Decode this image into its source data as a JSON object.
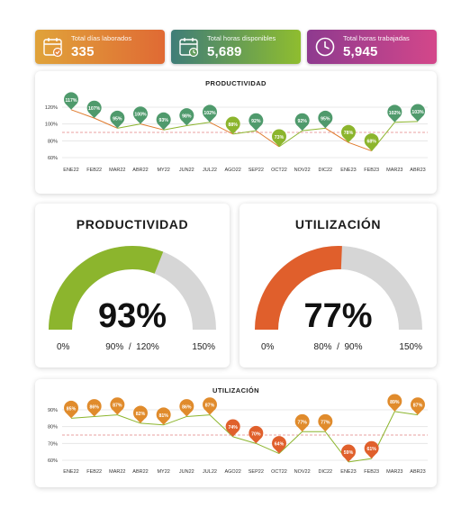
{
  "kpis": [
    {
      "label": "Total días laborados",
      "value": "335",
      "icon": "calendar-check-icon"
    },
    {
      "label": "Total horas disponibles",
      "value": "5,689",
      "icon": "calendar-clock-icon"
    },
    {
      "label": "Total horas trabajadas",
      "value": "5,945",
      "icon": "clock-icon"
    }
  ],
  "gauges": {
    "productividad": {
      "title": "PRODUCTIVIDAD",
      "value_label": "93%",
      "value": 93,
      "min_label": "0%",
      "target_label": "90%",
      "sep": "/",
      "max_mid_label": "120%",
      "max_label": "150%",
      "max": 150,
      "color": "#8cb52d"
    },
    "utilizacion": {
      "title": "UTILIZACIÓN",
      "value_label": "77%",
      "value": 77,
      "min_label": "0%",
      "target_label": "80%",
      "sep": "/",
      "max_mid_label": "90%",
      "max_label": "150%",
      "max": 150,
      "color": "#e05f2c"
    }
  },
  "chart_data": [
    {
      "type": "line",
      "title": "PRODUCTIVIDAD",
      "categories": [
        "ENE22",
        "FEB22",
        "MAR22",
        "ABR22",
        "MY22",
        "JUN22",
        "JUL22",
        "AGO22",
        "SEP22",
        "OCT22",
        "NOV22",
        "DIC22",
        "ENE23",
        "FEB23",
        "MAR23",
        "ABR23"
      ],
      "series": [
        {
          "values": [
            117,
            107,
            95,
            100,
            93,
            98,
            102,
            88,
            92,
            73,
            92,
            95,
            78,
            68,
            102,
            103
          ]
        }
      ],
      "value_labels": [
        "117%",
        "107%",
        "95%",
        "100%",
        "93%",
        "98%",
        "102%",
        "88%",
        "92%",
        "73%",
        "92%",
        "95%",
        "78%",
        "68%",
        "102%",
        "103%"
      ],
      "yticks": [
        "120%",
        "100%",
        "80%",
        "60%"
      ],
      "ytick_values": [
        120,
        100,
        80,
        60
      ],
      "ylim": [
        60,
        120
      ],
      "reference_line": 90,
      "colors": {
        "above": "#8cb52d",
        "below": "#e07a2c",
        "pin_above": "#4f9a6c",
        "pin_below": "#8cb52d",
        "reference": "#e8a0a0"
      }
    },
    {
      "type": "line",
      "title": "UTILIZACIÓN",
      "categories": [
        "ENE22",
        "FEB22",
        "MAR22",
        "ABR22",
        "MY22",
        "JUN22",
        "JUL22",
        "AGO22",
        "SEP22",
        "OCT22",
        "NOV22",
        "DIC22",
        "ENE23",
        "FEB23",
        "MAR23",
        "ABR23"
      ],
      "series": [
        {
          "values": [
            85,
            86,
            87,
            82,
            81,
            86,
            87,
            74,
            70,
            64,
            77,
            77,
            59,
            61,
            89,
            87
          ]
        }
      ],
      "value_labels": [
        "85%",
        "86%",
        "87%",
        "82%",
        "81%",
        "86%",
        "87%",
        "74%",
        "70%",
        "64%",
        "77%",
        "77%",
        "59%",
        "61%",
        "89%",
        "87%"
      ],
      "yticks": [
        "90%",
        "80%",
        "70%",
        "60%"
      ],
      "ytick_values": [
        90,
        80,
        70,
        60
      ],
      "ylim": [
        60,
        90
      ],
      "reference_line": 75,
      "colors": {
        "above": "#8cb52d",
        "below": "#8cb52d",
        "pin_above": "#e08b2c",
        "pin_below": "#e0602c",
        "reference": "#e8a0a0"
      }
    }
  ]
}
